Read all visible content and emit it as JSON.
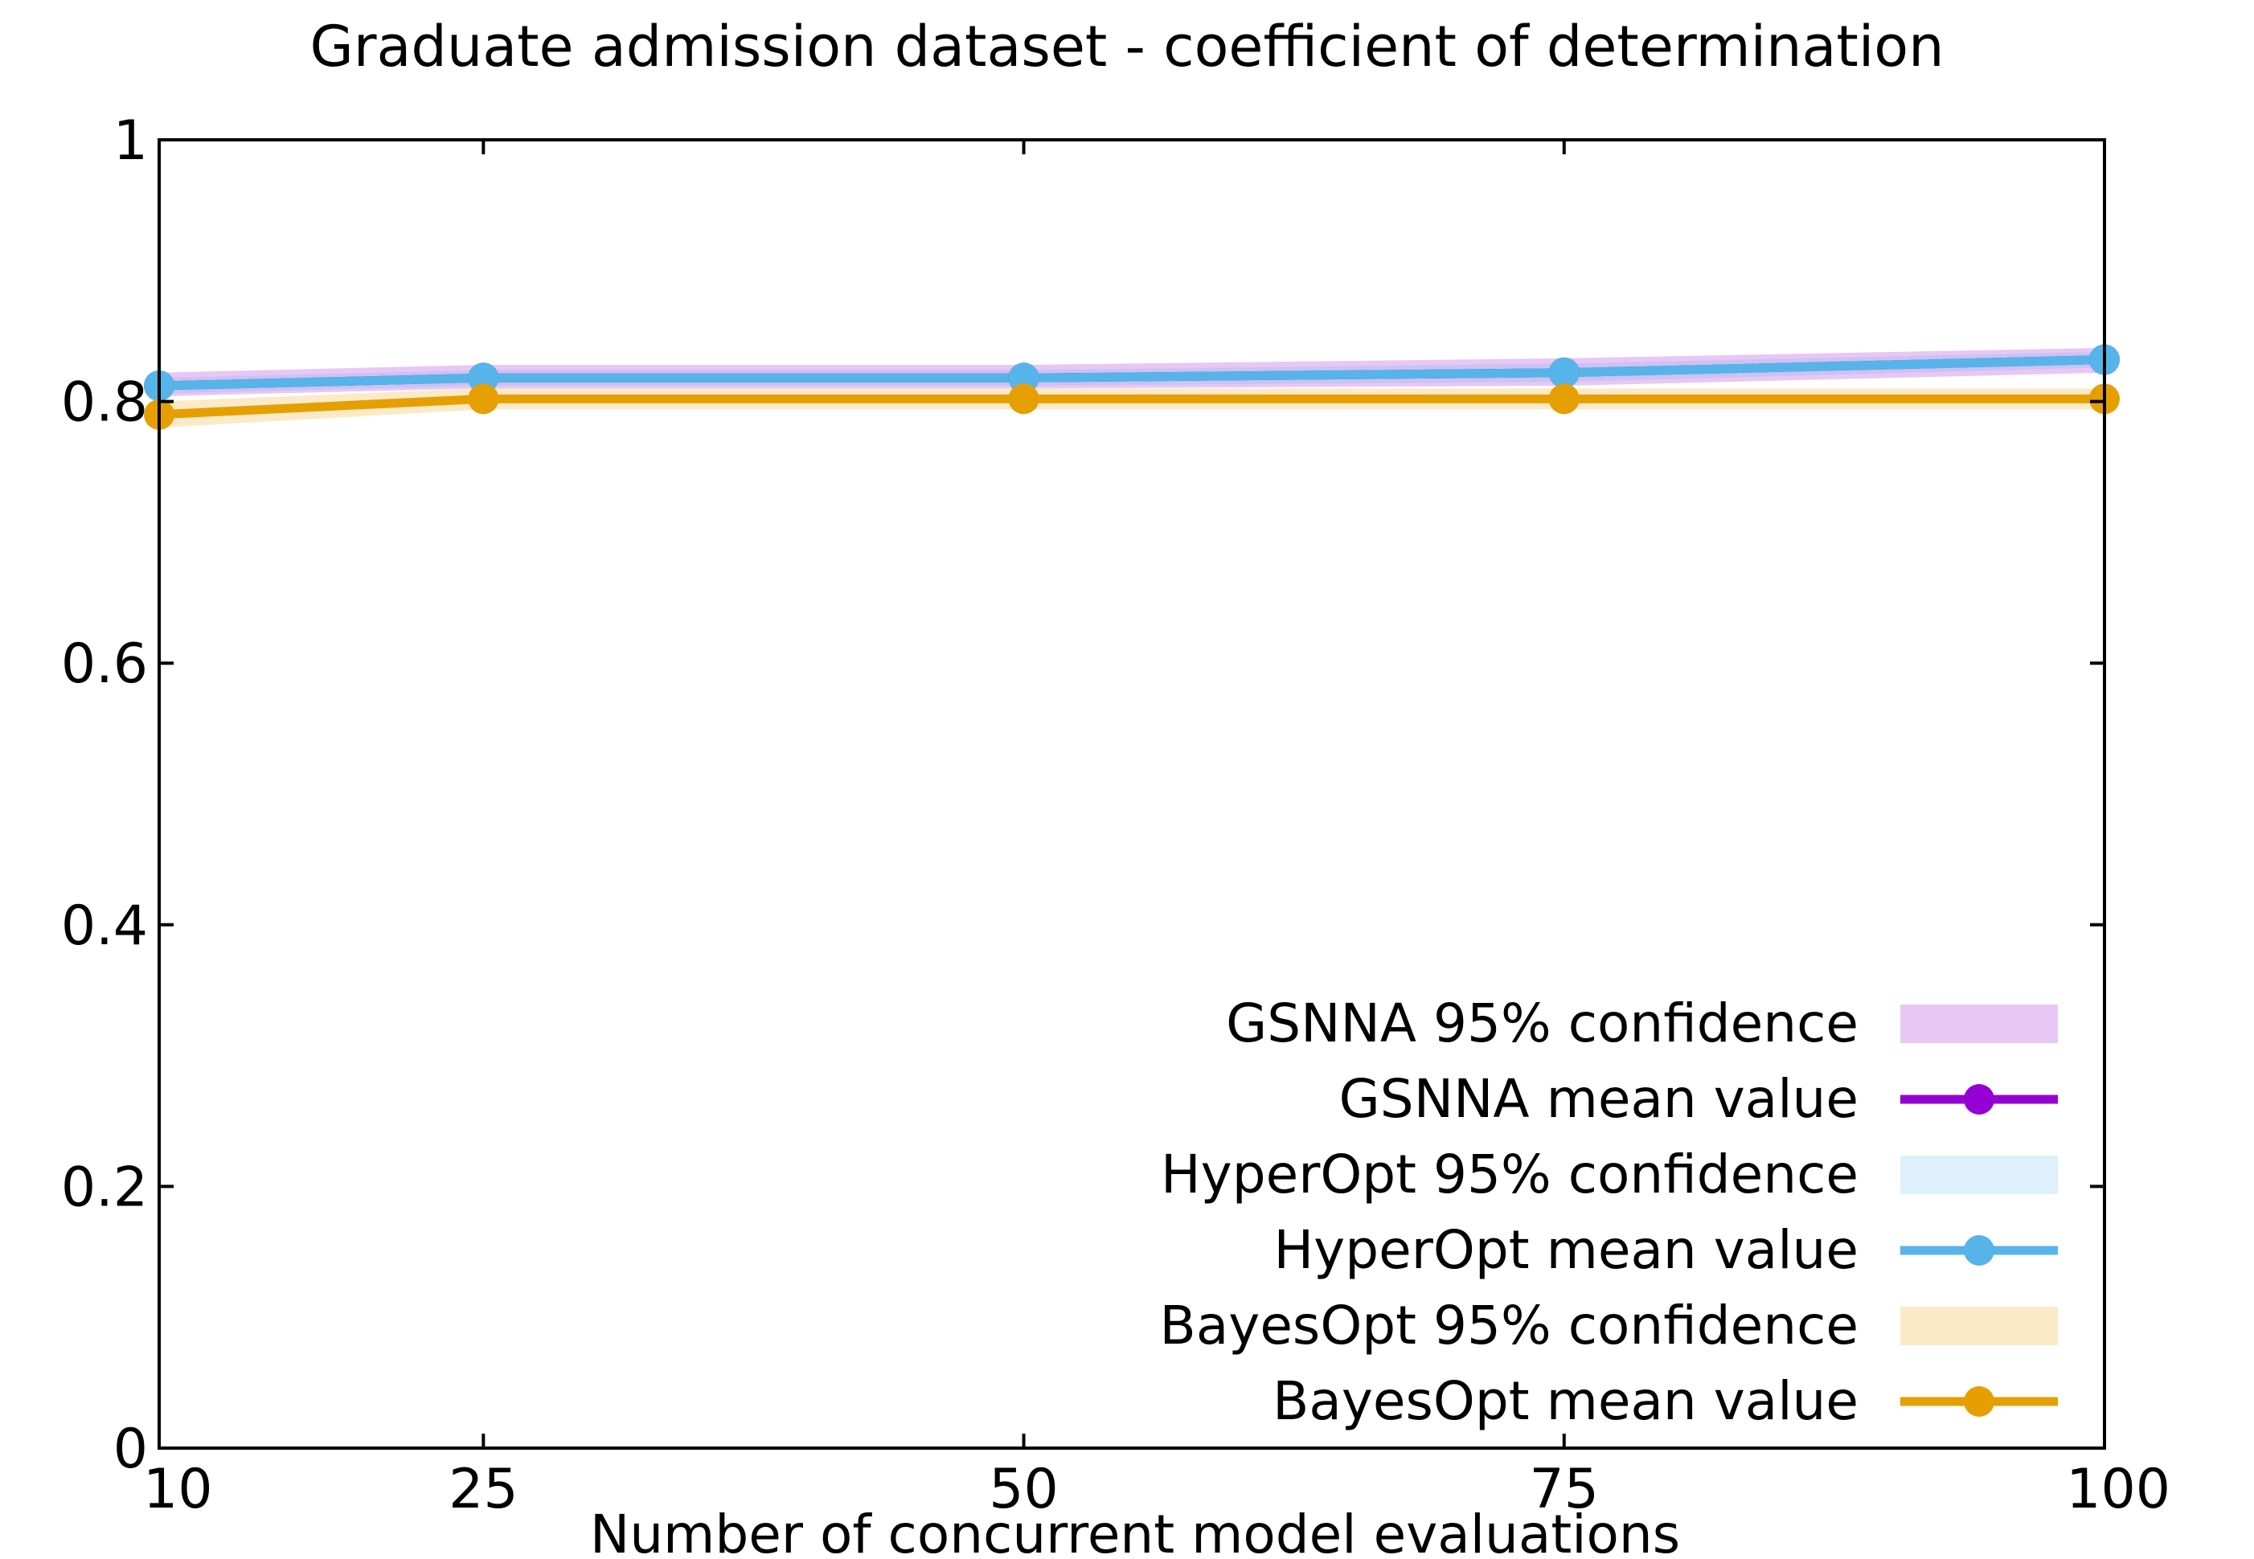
{
  "chart_data": {
    "type": "line",
    "title": "Graduate admission dataset - coefficient of determination",
    "xlabel": "Number of concurrent model evaluations",
    "ylabel": "",
    "x": [
      10,
      25,
      50,
      75,
      100
    ],
    "x_tick_labels": [
      "10",
      "25",
      "50",
      "75",
      "100"
    ],
    "y_tick_values": [
      0,
      0.2,
      0.4,
      0.6,
      0.8,
      1
    ],
    "y_tick_labels": [
      "0",
      "0.2",
      "0.4",
      "0.6",
      "0.8",
      "1"
    ],
    "xlim": [
      10,
      100
    ],
    "ylim": [
      0,
      1
    ],
    "grid": false,
    "legend_position": "bottom-right",
    "series": [
      {
        "name": "GSNNA",
        "mean_label": "GSNNA mean value",
        "ci_label": "GSNNA 95% confidence",
        "mean": [
          0.812,
          0.818,
          0.818,
          0.822,
          0.832
        ],
        "ci_low": [
          0.804,
          0.81,
          0.81,
          0.812,
          0.822
        ],
        "ci_high": [
          0.822,
          0.828,
          0.828,
          0.833,
          0.841
        ],
        "color": "#9400d3",
        "band_color": "#9400d3"
      },
      {
        "name": "HyperOpt",
        "mean_label": "HyperOpt mean value",
        "ci_label": "HyperOpt 95% confidence",
        "mean": [
          0.812,
          0.818,
          0.818,
          0.822,
          0.832
        ],
        "ci_low": [
          0.806,
          0.812,
          0.812,
          0.815,
          0.826
        ],
        "ci_high": [
          0.818,
          0.824,
          0.824,
          0.829,
          0.838
        ],
        "color": "#56b4e9",
        "band_color": "#56b4e9"
      },
      {
        "name": "BayesOpt",
        "mean_label": "BayesOpt mean value",
        "ci_label": "BayesOpt 95% confidence",
        "mean": [
          0.79,
          0.802,
          0.802,
          0.802,
          0.802
        ],
        "ci_low": [
          0.78,
          0.794,
          0.794,
          0.794,
          0.794
        ],
        "ci_high": [
          0.8,
          0.81,
          0.81,
          0.81,
          0.81
        ],
        "color": "#e69f00",
        "band_color": "#e69f00"
      }
    ]
  }
}
